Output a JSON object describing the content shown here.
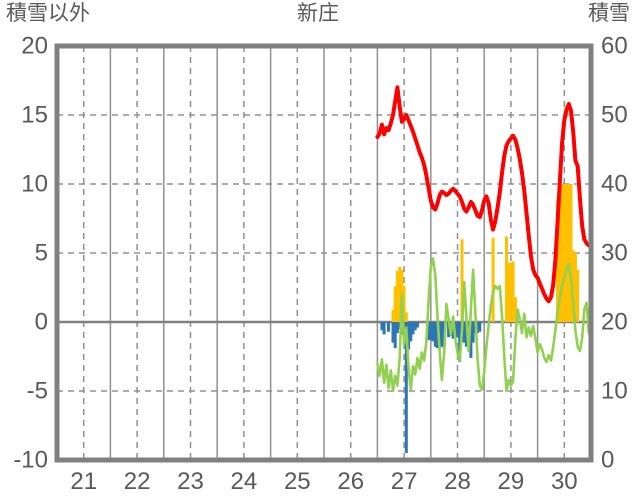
{
  "header": {
    "left_axis_title": "積雪以外",
    "chart_title": "新庄",
    "right_axis_title": "積雪"
  },
  "colors": {
    "background": "#FFFFFF",
    "text": "#595959",
    "grid": "#909090",
    "zero_line": "#808080",
    "border": "#808080",
    "red_line": "#FF0000",
    "green_line": "#92D050",
    "orange_bars": "#FFC000",
    "blue_bars": "#2E75B6"
  },
  "chart_data": {
    "type": "composite",
    "title": "新庄",
    "x_axis": {
      "range": [
        20.5,
        30.5
      ],
      "tick_labels": [
        "21",
        "22",
        "23",
        "24",
        "25",
        "26",
        "27",
        "28",
        "29",
        "30"
      ],
      "ticks": [
        21,
        22,
        23,
        24,
        25,
        26,
        27,
        28,
        29,
        30
      ]
    },
    "left_axis": {
      "title": "積雪以外",
      "range": [
        -10,
        20
      ],
      "ticks": [
        20,
        15,
        10,
        5,
        0,
        -5,
        -10
      ]
    },
    "right_axis": {
      "title": "積雪",
      "range": [
        0,
        60
      ],
      "ticks": [
        60,
        50,
        40,
        30,
        20,
        10,
        0
      ]
    },
    "series_time": {
      "start_day": 26.5,
      "step_days": 0.0416667
    },
    "series": [
      {
        "name": "red-line",
        "axis_label": "積雪",
        "type": "line",
        "axis": "right",
        "color": "#FF0000",
        "width": 4,
        "values": [
          46.8,
          47.3,
          48.6,
          47.2,
          48.1,
          47.8,
          48.8,
          50.0,
          52.0,
          54.0,
          51.2,
          49.0,
          49.4,
          50.0,
          49.2,
          48.4,
          47.6,
          46.6,
          45.6,
          44.6,
          43.8,
          42.8,
          41.2,
          39.4,
          37.6,
          36.6,
          36.3,
          37.2,
          38.4,
          38.9,
          38.7,
          38.4,
          38.6,
          39.0,
          39.3,
          39.0,
          38.6,
          38.2,
          37.4,
          36.4,
          36.0,
          36.6,
          37.4,
          37.0,
          36.2,
          35.4,
          35.2,
          36.2,
          37.6,
          38.2,
          37.2,
          34.8,
          33.4,
          34.6,
          36.6,
          38.8,
          41.6,
          44.0,
          45.6,
          46.2,
          46.6,
          47.0,
          46.4,
          45.2,
          43.6,
          41.6,
          39.0,
          35.8,
          32.6,
          29.6,
          27.6,
          26.8,
          26.4,
          25.6,
          24.8,
          24.0,
          23.4,
          23.0,
          23.6,
          25.4,
          29.0,
          34.5,
          40.5,
          46.0,
          49.2,
          50.8,
          51.6,
          50.6,
          47.6,
          43.4,
          42.6,
          38.0,
          34.0,
          32.0,
          31.4,
          31.1,
          30.9
        ]
      },
      {
        "name": "green-line",
        "type": "line",
        "axis": "left",
        "color": "#92D050",
        "width": 2.6,
        "values": [
          -3.0,
          -3.9,
          -2.7,
          -4.4,
          -3.1,
          -4.8,
          -3.5,
          -5.0,
          -3.9,
          -4.6,
          -2.6,
          2.0,
          -1.6,
          -0.4,
          -3.4,
          -4.9,
          -3.2,
          -3.8,
          -2.6,
          -3.4,
          -2.2,
          -2.8,
          -1.4,
          1.6,
          4.0,
          4.6,
          3.4,
          0.4,
          -2.2,
          -4.2,
          -2.2,
          1.3,
          0.2,
          -0.9,
          0.4,
          -1.2,
          -2.2,
          -2.8,
          -0.6,
          2.9,
          0.4,
          -2.1,
          0.9,
          3.8,
          0.8,
          -2.6,
          -4.6,
          -4.9,
          -3.6,
          -1.8,
          -0.2,
          1.2,
          2.2,
          2.6,
          2.4,
          2.6,
          0.5,
          -2.4,
          -5.0,
          -4.2,
          -4.6,
          -4.3,
          -1.2,
          0.9,
          0.2,
          -0.8,
          0.6,
          -1.1,
          -0.4,
          -1.0,
          -0.3,
          -1.2,
          -2.2,
          -1.6,
          -2.0,
          -2.6,
          -2.9,
          -2.4,
          -2.8,
          -1.8,
          -0.6,
          0.8,
          1.8,
          2.6,
          3.2,
          3.8,
          4.2,
          3.2,
          1.4,
          -0.6,
          -1.8,
          -2.1,
          -1.2,
          0.9,
          1.4,
          -0.8,
          1.1
        ]
      },
      {
        "name": "orange-bars",
        "type": "bar",
        "axis": "left",
        "color": "#FFC000",
        "values": [
          null,
          null,
          null,
          null,
          null,
          null,
          null,
          0.9,
          2.6,
          3.7,
          4.0,
          3.8,
          2.6,
          0.7,
          null,
          null,
          null,
          null,
          null,
          null,
          null,
          null,
          null,
          null,
          null,
          null,
          null,
          null,
          null,
          null,
          null,
          null,
          null,
          null,
          null,
          null,
          null,
          null,
          6.0,
          null,
          null,
          null,
          null,
          null,
          null,
          null,
          null,
          null,
          null,
          null,
          null,
          null,
          6.1,
          null,
          null,
          null,
          null,
          null,
          6.2,
          4.3,
          4.3,
          4.4,
          1.8,
          null,
          null,
          null,
          null,
          null,
          null,
          null,
          null,
          null,
          null,
          null,
          null,
          null,
          null,
          null,
          null,
          null,
          null,
          8.8,
          10,
          10,
          10,
          10,
          10,
          10,
          5.2,
          5.0,
          3.8,
          null,
          null,
          null,
          null,
          null,
          null
        ]
      },
      {
        "name": "blue-bars",
        "type": "bar",
        "axis": "left",
        "color": "#2E75B6",
        "values": [
          null,
          null,
          -0.6,
          -0.9,
          null,
          -0.7,
          null,
          -1.5,
          -1.9,
          -0.8,
          -0.5,
          -0.9,
          -1.2,
          -9.5,
          -2.0,
          -1.4,
          -0.9,
          -0.6,
          -0.4,
          null,
          null,
          null,
          null,
          -1.3,
          -1.3,
          -1.4,
          -1.8,
          -1.9,
          -1.9,
          -1.8,
          -1.9,
          null,
          -1.1,
          -1.0,
          -1.2,
          -1.1,
          -1.1,
          -2.9,
          -1.4,
          -1.5,
          -1.8,
          -1.4,
          -2.6,
          -1.5,
          -0.8,
          -0.8,
          -0.7,
          null,
          null,
          null,
          null,
          null,
          null,
          null,
          null,
          null,
          null,
          null,
          null,
          null,
          null,
          null,
          null,
          null,
          null,
          null,
          null,
          null,
          null,
          null,
          null,
          null,
          null,
          null,
          null,
          null,
          null,
          null,
          null,
          null,
          null,
          null,
          null,
          null,
          null,
          null,
          null,
          null,
          null,
          null,
          null,
          null,
          null,
          null,
          null,
          null,
          null
        ]
      }
    ]
  }
}
